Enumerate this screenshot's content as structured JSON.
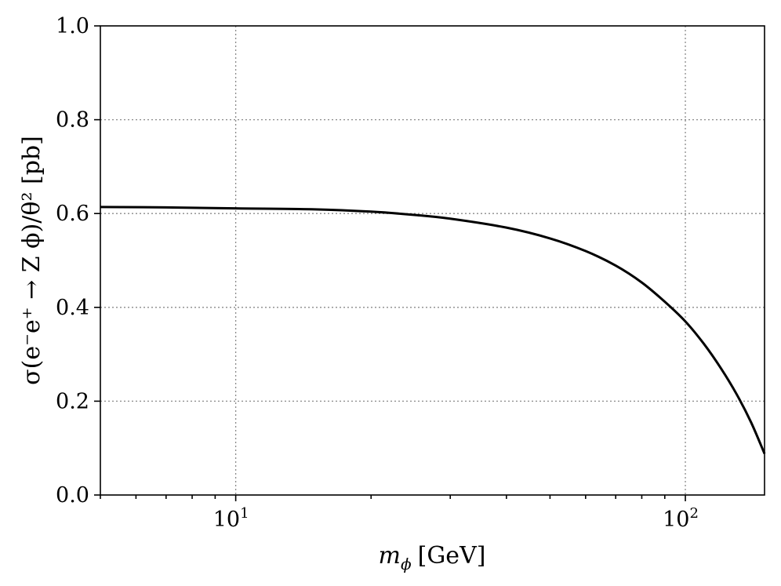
{
  "chart_data": {
    "type": "line",
    "xscale": "log",
    "xlim": [
      5,
      150
    ],
    "ylim": [
      0.0,
      1.0
    ],
    "grid": true,
    "xlabel_main": "m",
    "xlabel_sub": "ϕ",
    "xlabel_unit": "[GeV]",
    "ylabel": "σ(e⁻e⁺ → Z ϕ)/θ² [pb]",
    "x_ticks": [
      {
        "value": 10,
        "base": "10",
        "exp": "1"
      },
      {
        "value": 100,
        "base": "10",
        "exp": "2"
      }
    ],
    "y_ticks": [
      {
        "value": 0.0,
        "label": "0.0"
      },
      {
        "value": 0.2,
        "label": "0.2"
      },
      {
        "value": 0.4,
        "label": "0.4"
      },
      {
        "value": 0.6,
        "label": "0.6"
      },
      {
        "value": 0.8,
        "label": "0.8"
      },
      {
        "value": 1.0,
        "label": "1.0"
      }
    ],
    "series": [
      {
        "color": "#000000",
        "x": [
          5,
          7,
          10,
          15,
          20,
          25,
          30,
          40,
          50,
          60,
          70,
          80,
          90,
          100,
          110,
          120,
          130,
          140,
          150
        ],
        "y": [
          0.614,
          0.613,
          0.611,
          0.609,
          0.604,
          0.597,
          0.589,
          0.57,
          0.547,
          0.52,
          0.489,
          0.453,
          0.412,
          0.37,
          0.322,
          0.27,
          0.215,
          0.155,
          0.088
        ]
      }
    ]
  }
}
